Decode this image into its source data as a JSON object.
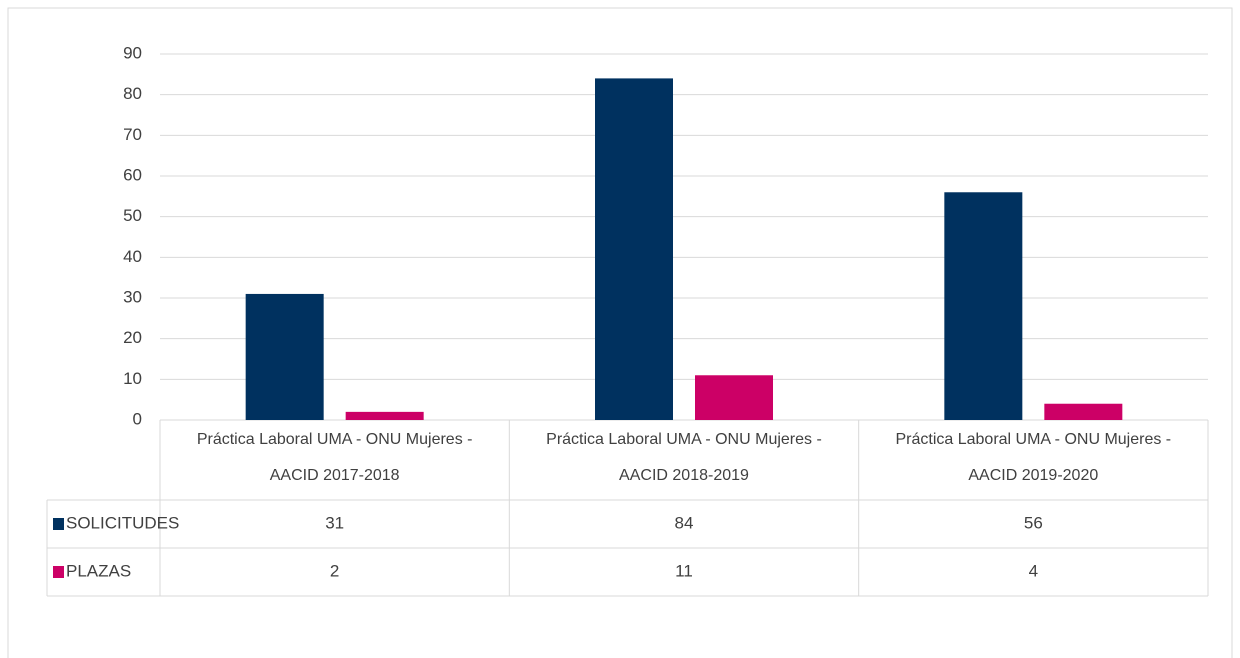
{
  "chart_data": {
    "type": "bar",
    "categories": [
      "Práctica Laboral UMA - ONU Mujeres - AACID 2017-2018",
      "Práctica Laboral UMA - ONU Mujeres - AACID 2018-2019",
      "Práctica Laboral UMA - ONU Mujeres - AACID 2019-2020"
    ],
    "series": [
      {
        "name": "SOLICITUDES",
        "color": "#00315f",
        "values": [
          31,
          84,
          56
        ]
      },
      {
        "name": "PLAZAS",
        "color": "#cc0066",
        "values": [
          2,
          11,
          4
        ]
      }
    ],
    "ylim": [
      0,
      90
    ],
    "yticks": [
      0,
      10,
      20,
      30,
      40,
      50,
      60,
      70,
      80,
      90
    ],
    "grid": true,
    "data_table": true
  }
}
